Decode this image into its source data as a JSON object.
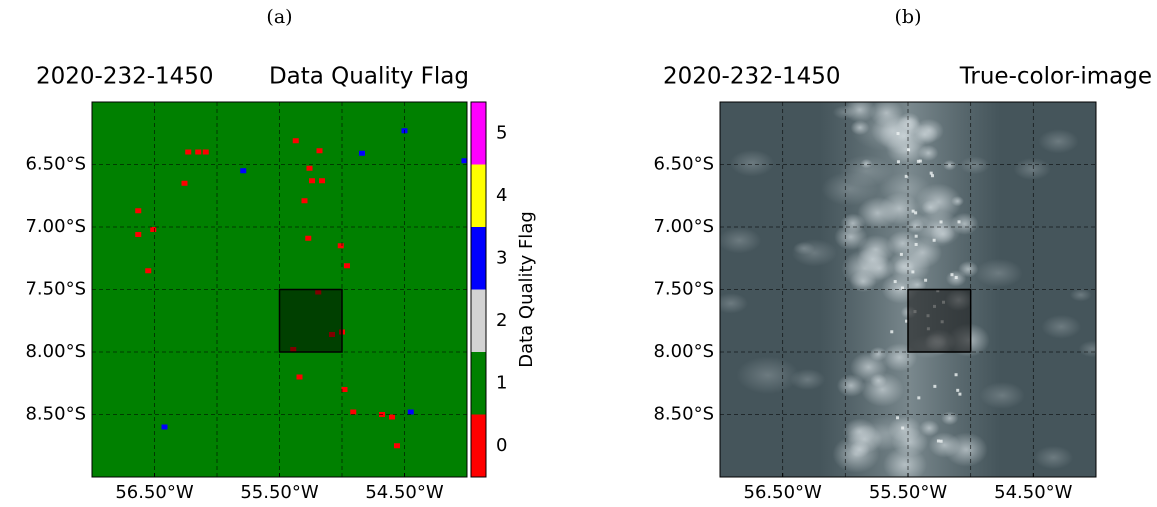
{
  "chart_data": [
    {
      "type": "flag-map",
      "panel_label": "(a)",
      "title": "2020-232-1450",
      "title_right": "Data Quality Flag",
      "xlim": [
        -57.0,
        -54.0
      ],
      "ylim": [
        -9.0,
        -6.0
      ],
      "xticks": [
        {
          "value": -56.5,
          "label": "56.50°W"
        },
        {
          "value": -55.5,
          "label": "55.50°W"
        },
        {
          "value": -54.5,
          "label": "54.50°W"
        }
      ],
      "yticks": [
        {
          "value": -6.5,
          "label": "6.50°S"
        },
        {
          "value": -7.0,
          "label": "7.00°S"
        },
        {
          "value": -7.5,
          "label": "7.50°S"
        },
        {
          "value": -8.0,
          "label": "8.00°S"
        },
        {
          "value": -8.5,
          "label": "8.50°S"
        }
      ],
      "xgrid": [
        -56.5,
        -56.0,
        -55.5,
        -55.0,
        -54.5
      ],
      "grid": true,
      "highlight": {
        "xlim": [
          -55.5,
          -55.0
        ],
        "ylim": [
          -8.0,
          -7.5
        ]
      },
      "fill_flag": 1,
      "points": {
        "x": [
          -56.23,
          -56.15,
          -56.09,
          -56.26,
          -56.63,
          -56.63,
          -56.51,
          -56.55,
          -55.37,
          -55.18,
          -55.26,
          -55.24,
          -55.16,
          -55.3,
          -55.27,
          -55.01,
          -54.96,
          -55.19,
          -55.08,
          -55.0,
          -55.39,
          -55.34,
          -54.98,
          -54.91,
          -54.68,
          -54.6,
          -54.56,
          -56.42,
          -54.45,
          -54.5,
          -54.84,
          -55.79,
          -54.02
        ],
        "y": [
          -6.4,
          -6.4,
          -6.4,
          -6.65,
          -6.87,
          -7.06,
          -7.02,
          -7.35,
          -6.31,
          -6.39,
          -6.53,
          -6.63,
          -6.63,
          -6.79,
          -7.09,
          -7.15,
          -7.31,
          -7.52,
          -7.86,
          -7.84,
          -7.98,
          -8.2,
          -8.3,
          -8.48,
          -8.5,
          -8.52,
          -8.75,
          -8.6,
          -8.48,
          -6.23,
          -6.41,
          -6.55,
          -6.47
        ],
        "flag": [
          0,
          0,
          0,
          0,
          0,
          0,
          0,
          0,
          0,
          0,
          0,
          0,
          0,
          0,
          0,
          0,
          0,
          0,
          0,
          0,
          0,
          0,
          0,
          0,
          0,
          0,
          0,
          3,
          3,
          3,
          3,
          3,
          3
        ]
      },
      "colorbar": {
        "label": "Data Quality Flag",
        "lim": [
          -0.5,
          5.5
        ],
        "ticks": [
          0,
          1,
          2,
          3,
          4,
          5
        ],
        "colors": [
          "#ff0000",
          "#008000",
          "#d3d3d3",
          "#0000ff",
          "#ffff00",
          "#ff00ff"
        ]
      }
    },
    {
      "type": "image",
      "panel_label": "(b)",
      "title": "2020-232-1450",
      "title_right": "True-color-image",
      "xlim": [
        -57.0,
        -54.0
      ],
      "ylim": [
        -9.0,
        -6.0
      ],
      "xticks": [
        {
          "value": -56.5,
          "label": "56.50°W"
        },
        {
          "value": -55.5,
          "label": "55.50°W"
        },
        {
          "value": -54.5,
          "label": "54.50°W"
        }
      ],
      "yticks": [
        {
          "value": -6.5,
          "label": "6.50°S"
        },
        {
          "value": -7.0,
          "label": "7.00°S"
        },
        {
          "value": -7.5,
          "label": "7.50°S"
        },
        {
          "value": -8.0,
          "label": "8.00°S"
        },
        {
          "value": -8.5,
          "label": "8.50°S"
        }
      ],
      "xgrid": [
        -56.5,
        -56.0,
        -55.5,
        -55.0,
        -54.5
      ],
      "grid": true,
      "highlight": {
        "xlim": [
          -55.5,
          -55.0
        ],
        "ylim": [
          -8.0,
          -7.5
        ]
      }
    }
  ]
}
